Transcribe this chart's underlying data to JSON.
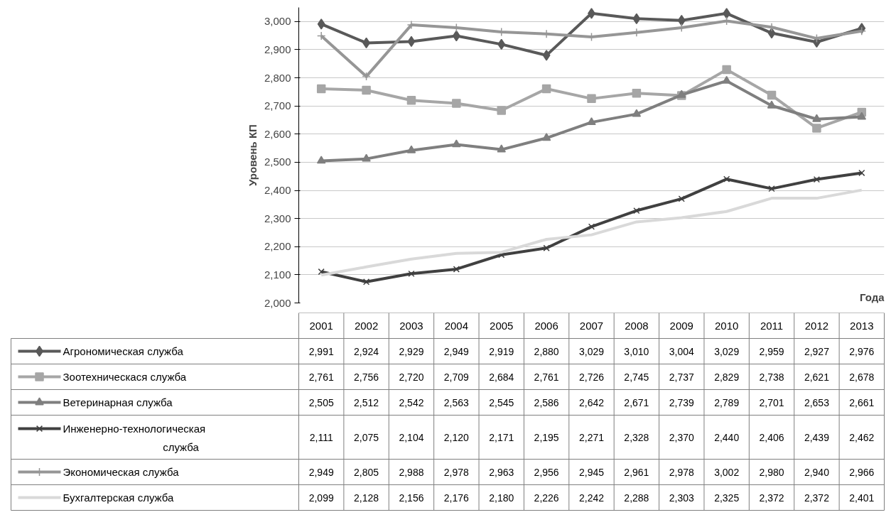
{
  "chart_data": {
    "type": "line",
    "xlabel": "Года",
    "ylabel": "Уровень КП",
    "categories": [
      "2001",
      "2002",
      "2003",
      "2004",
      "2005",
      "2006",
      "2007",
      "2008",
      "2009",
      "2010",
      "2011",
      "2012",
      "2013"
    ],
    "ylim": [
      2000,
      3050
    ],
    "yticks": [
      {
        "value": 2000,
        "label": "2,000"
      },
      {
        "value": 2100,
        "label": "2,100"
      },
      {
        "value": 2200,
        "label": "2,200"
      },
      {
        "value": 2300,
        "label": "2,300"
      },
      {
        "value": 2400,
        "label": "2,400"
      },
      {
        "value": 2500,
        "label": "2,500"
      },
      {
        "value": 2600,
        "label": "2,600"
      },
      {
        "value": 2700,
        "label": "2,700"
      },
      {
        "value": 2800,
        "label": "2,800"
      },
      {
        "value": 2900,
        "label": "2,900"
      },
      {
        "value": 3000,
        "label": "3,000"
      }
    ],
    "grid": "y",
    "legend": "bottom",
    "series": [
      {
        "name": "Агрономическая служба",
        "color": "#595959",
        "marker": "diamond",
        "values": [
          2991,
          2924,
          2929,
          2949,
          2919,
          2880,
          3029,
          3010,
          3004,
          3029,
          2959,
          2927,
          2976
        ],
        "value_labels": [
          "2,991",
          "2,924",
          "2,929",
          "2,949",
          "2,919",
          "2,880",
          "3,029",
          "3,010",
          "3,004",
          "3,029",
          "2,959",
          "2,927",
          "2,976"
        ]
      },
      {
        "name": "Зоотехническася служба",
        "color": "#a6a6a6",
        "marker": "square",
        "values": [
          2761,
          2756,
          2720,
          2709,
          2684,
          2761,
          2726,
          2745,
          2737,
          2829,
          2738,
          2621,
          2678
        ],
        "value_labels": [
          "2,761",
          "2,756",
          "2,720",
          "2,709",
          "2,684",
          "2,761",
          "2,726",
          "2,745",
          "2,737",
          "2,829",
          "2,738",
          "2,621",
          "2,678"
        ]
      },
      {
        "name": "Ветеринарная служба",
        "color": "#7f7f7f",
        "marker": "triangle",
        "values": [
          2505,
          2512,
          2542,
          2563,
          2545,
          2586,
          2642,
          2671,
          2739,
          2789,
          2701,
          2653,
          2661
        ],
        "value_labels": [
          "2,505",
          "2,512",
          "2,542",
          "2,563",
          "2,545",
          "2,586",
          "2,642",
          "2,671",
          "2,739",
          "2,789",
          "2,701",
          "2,653",
          "2,661"
        ]
      },
      {
        "name": "Инженерно-технологическая служба",
        "color": "#404040",
        "marker": "x",
        "values": [
          2111,
          2075,
          2104,
          2120,
          2171,
          2195,
          2271,
          2328,
          2370,
          2440,
          2406,
          2439,
          2462
        ],
        "value_labels": [
          "2,111",
          "2,075",
          "2,104",
          "2,120",
          "2,171",
          "2,195",
          "2,271",
          "2,328",
          "2,370",
          "2,440",
          "2,406",
          "2,439",
          "2,462"
        ]
      },
      {
        "name": "Экономическая служба",
        "color": "#969696",
        "marker": "cross",
        "values": [
          2949,
          2805,
          2988,
          2978,
          2963,
          2956,
          2945,
          2961,
          2978,
          3002,
          2980,
          2940,
          2966
        ],
        "value_labels": [
          "2,949",
          "2,805",
          "2,988",
          "2,978",
          "2,963",
          "2,956",
          "2,945",
          "2,961",
          "2,978",
          "3,002",
          "2,980",
          "2,940",
          "2,966"
        ]
      },
      {
        "name": "Бухгалтерская служба",
        "color": "#d9d9d9",
        "marker": "none",
        "values": [
          2099,
          2128,
          2156,
          2176,
          2180,
          2226,
          2242,
          2288,
          2303,
          2325,
          2372,
          2372,
          2401
        ],
        "value_labels": [
          "2,099",
          "2,128",
          "2,156",
          "2,176",
          "2,180",
          "2,226",
          "2,242",
          "2,288",
          "2,303",
          "2,325",
          "2,372",
          "2,372",
          "2,401"
        ]
      }
    ]
  }
}
